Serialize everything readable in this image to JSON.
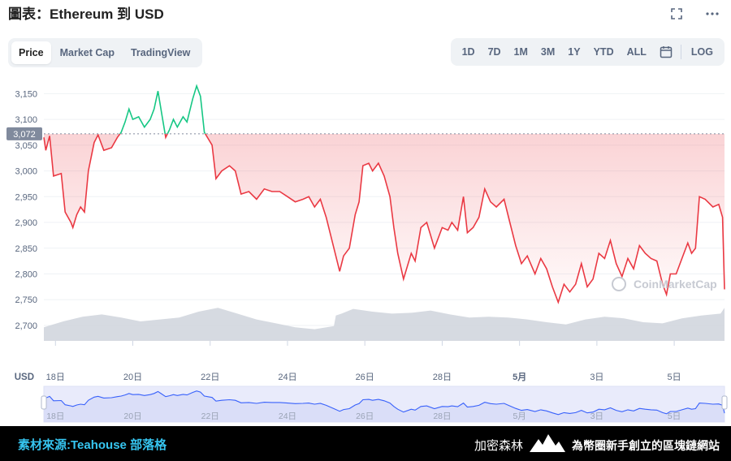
{
  "header": {
    "title": "圖表：Ethereum 到 USD",
    "fullscreen_icon": "fullscreen-icon",
    "more_icon": "more-icon"
  },
  "tabs": [
    {
      "label": "Price",
      "active": true
    },
    {
      "label": "Market Cap",
      "active": false
    },
    {
      "label": "TradingView",
      "active": false
    }
  ],
  "ranges": [
    "1D",
    "7D",
    "1M",
    "3M",
    "1Y",
    "YTD",
    "ALL"
  ],
  "calendar_icon": "calendar-icon",
  "log_label": "LOG",
  "watermark": "CoinMarketCap",
  "footer": {
    "source": "素材來源:Teahouse 部落格",
    "brand": "加密森林",
    "slogan": "為幣圈新手創立的區塊鏈網站"
  },
  "colors": {
    "up": "#16c784",
    "down": "#ea3943",
    "volume": "#cfd3dc",
    "navigator_fill": "#e9ebfb",
    "navigator_line": "#3861fb"
  },
  "chart_data": {
    "type": "line",
    "currency_label": "USD",
    "y_ticks": [
      2700,
      2750,
      2800,
      2850,
      2900,
      2950,
      3000,
      3050,
      3100,
      3150
    ],
    "ylim": [
      2670,
      3190
    ],
    "reference_price": 3072,
    "reference_label": "3,072",
    "x_ticks": [
      {
        "x": 0.3,
        "label": "18日"
      },
      {
        "x": 2.3,
        "label": "20日"
      },
      {
        "x": 4.3,
        "label": "22日"
      },
      {
        "x": 6.3,
        "label": "24日"
      },
      {
        "x": 8.3,
        "label": "26日"
      },
      {
        "x": 10.3,
        "label": "28日"
      },
      {
        "x": 12.3,
        "label": "5月"
      },
      {
        "x": 14.3,
        "label": "3日"
      },
      {
        "x": 16.3,
        "label": "5日"
      }
    ],
    "xlim": [
      0,
      17.6
    ],
    "series": [
      {
        "points": [
          [
            0,
            3065
          ],
          [
            0.05,
            3040
          ],
          [
            0.15,
            3068
          ],
          [
            0.25,
            2990
          ],
          [
            0.45,
            2995
          ],
          [
            0.55,
            2920
          ],
          [
            0.7,
            2900
          ],
          [
            0.75,
            2890
          ],
          [
            0.85,
            2915
          ],
          [
            0.95,
            2930
          ],
          [
            1.05,
            2920
          ],
          [
            1.15,
            3000
          ],
          [
            1.3,
            3055
          ],
          [
            1.4,
            3070
          ],
          [
            1.55,
            3040
          ],
          [
            1.75,
            3045
          ],
          [
            1.9,
            3065
          ],
          [
            2.0,
            3075
          ],
          [
            2.1,
            3095
          ],
          [
            2.2,
            3120
          ],
          [
            2.3,
            3100
          ],
          [
            2.45,
            3105
          ],
          [
            2.6,
            3085
          ],
          [
            2.75,
            3100
          ],
          [
            2.85,
            3120
          ],
          [
            2.95,
            3155
          ],
          [
            3.05,
            3110
          ],
          [
            3.15,
            3065
          ],
          [
            3.25,
            3080
          ],
          [
            3.35,
            3100
          ],
          [
            3.45,
            3085
          ],
          [
            3.6,
            3105
          ],
          [
            3.7,
            3095
          ],
          [
            3.85,
            3140
          ],
          [
            3.95,
            3165
          ],
          [
            4.05,
            3145
          ],
          [
            4.15,
            3075
          ],
          [
            4.35,
            3050
          ],
          [
            4.45,
            2985
          ],
          [
            4.6,
            3000
          ],
          [
            4.8,
            3010
          ],
          [
            4.95,
            3000
          ],
          [
            5.1,
            2955
          ],
          [
            5.3,
            2960
          ],
          [
            5.5,
            2945
          ],
          [
            5.7,
            2965
          ],
          [
            5.9,
            2960
          ],
          [
            6.1,
            2960
          ],
          [
            6.3,
            2950
          ],
          [
            6.5,
            2940
          ],
          [
            6.7,
            2945
          ],
          [
            6.85,
            2950
          ],
          [
            7.0,
            2930
          ],
          [
            7.15,
            2945
          ],
          [
            7.3,
            2910
          ],
          [
            7.5,
            2850
          ],
          [
            7.65,
            2805
          ],
          [
            7.75,
            2835
          ],
          [
            7.9,
            2850
          ],
          [
            8.05,
            2915
          ],
          [
            8.15,
            2940
          ],
          [
            8.25,
            3010
          ],
          [
            8.4,
            3015
          ],
          [
            8.5,
            3000
          ],
          [
            8.65,
            3015
          ],
          [
            8.8,
            2990
          ],
          [
            8.95,
            2950
          ],
          [
            9.05,
            2890
          ],
          [
            9.15,
            2840
          ],
          [
            9.3,
            2790
          ],
          [
            9.5,
            2840
          ],
          [
            9.6,
            2825
          ],
          [
            9.75,
            2890
          ],
          [
            9.9,
            2900
          ],
          [
            10.1,
            2850
          ],
          [
            10.3,
            2890
          ],
          [
            10.45,
            2885
          ],
          [
            10.55,
            2900
          ],
          [
            10.7,
            2885
          ],
          [
            10.85,
            2950
          ],
          [
            10.95,
            2880
          ],
          [
            11.1,
            2890
          ],
          [
            11.25,
            2910
          ],
          [
            11.4,
            2965
          ],
          [
            11.55,
            2940
          ],
          [
            11.7,
            2930
          ],
          [
            11.9,
            2945
          ],
          [
            12.05,
            2900
          ],
          [
            12.2,
            2855
          ],
          [
            12.35,
            2820
          ],
          [
            12.5,
            2835
          ],
          [
            12.7,
            2800
          ],
          [
            12.85,
            2830
          ],
          [
            13.0,
            2810
          ],
          [
            13.15,
            2775
          ],
          [
            13.3,
            2745
          ],
          [
            13.45,
            2780
          ],
          [
            13.6,
            2765
          ],
          [
            13.75,
            2780
          ],
          [
            13.9,
            2820
          ],
          [
            14.05,
            2775
          ],
          [
            14.2,
            2790
          ],
          [
            14.35,
            2840
          ],
          [
            14.5,
            2830
          ],
          [
            14.65,
            2865
          ],
          [
            14.8,
            2820
          ],
          [
            14.95,
            2795
          ],
          [
            15.1,
            2830
          ],
          [
            15.25,
            2810
          ],
          [
            15.4,
            2855
          ],
          [
            15.55,
            2840
          ],
          [
            15.7,
            2830
          ],
          [
            15.85,
            2825
          ],
          [
            16.0,
            2780
          ],
          [
            16.1,
            2760
          ],
          [
            16.2,
            2800
          ],
          [
            16.35,
            2800
          ],
          [
            16.5,
            2830
          ],
          [
            16.65,
            2860
          ],
          [
            16.75,
            2840
          ],
          [
            16.85,
            2850
          ],
          [
            16.95,
            2950
          ],
          [
            17.1,
            2945
          ],
          [
            17.3,
            2930
          ],
          [
            17.45,
            2935
          ],
          [
            17.55,
            2910
          ],
          [
            17.6,
            2770
          ]
        ]
      }
    ],
    "volume": [
      [
        0,
        0.35
      ],
      [
        0.5,
        0.5
      ],
      [
        1.0,
        0.62
      ],
      [
        1.5,
        0.68
      ],
      [
        2.0,
        0.6
      ],
      [
        2.5,
        0.5
      ],
      [
        3.0,
        0.55
      ],
      [
        3.5,
        0.6
      ],
      [
        4.0,
        0.75
      ],
      [
        4.5,
        0.85
      ],
      [
        5.0,
        0.7
      ],
      [
        5.5,
        0.55
      ],
      [
        6.0,
        0.45
      ],
      [
        6.5,
        0.35
      ],
      [
        7.0,
        0.3
      ],
      [
        7.5,
        0.38
      ],
      [
        7.55,
        0.65
      ],
      [
        7.7,
        0.7
      ],
      [
        8.0,
        0.82
      ],
      [
        8.5,
        0.75
      ],
      [
        9.0,
        0.7
      ],
      [
        9.5,
        0.72
      ],
      [
        10.0,
        0.78
      ],
      [
        10.5,
        0.68
      ],
      [
        11.0,
        0.6
      ],
      [
        11.5,
        0.62
      ],
      [
        12.0,
        0.6
      ],
      [
        12.5,
        0.55
      ],
      [
        13.0,
        0.48
      ],
      [
        13.5,
        0.42
      ],
      [
        14.0,
        0.55
      ],
      [
        14.5,
        0.62
      ],
      [
        15.0,
        0.58
      ],
      [
        15.5,
        0.48
      ],
      [
        16.0,
        0.45
      ],
      [
        16.5,
        0.58
      ],
      [
        17.0,
        0.65
      ],
      [
        17.5,
        0.7
      ],
      [
        17.6,
        0.85
      ]
    ]
  }
}
